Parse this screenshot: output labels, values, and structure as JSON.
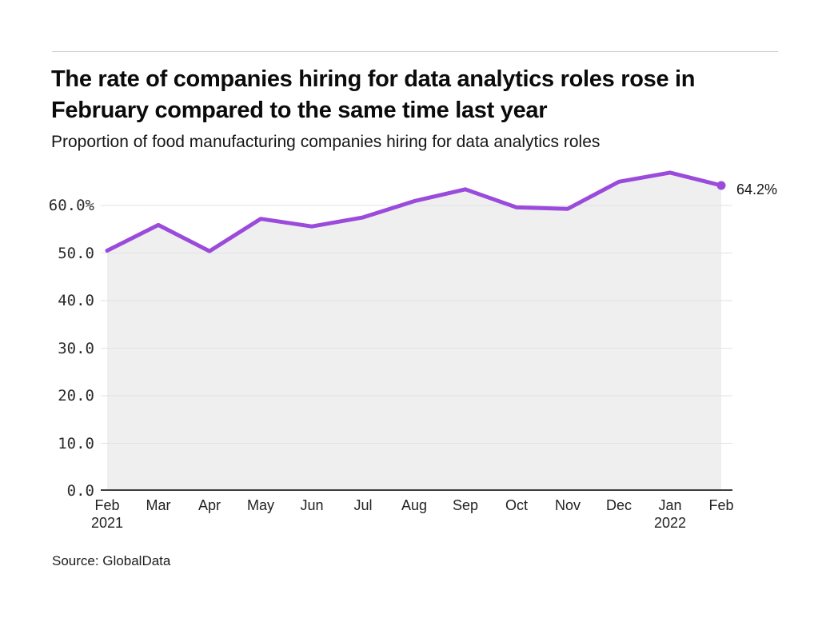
{
  "page": {
    "title": "The rate of companies hiring for data analytics roles rose in February compared to the same time last year",
    "subtitle": "Proportion of food manufacturing companies hiring for data analytics roles",
    "source": "Source: GlobalData"
  },
  "colors": {
    "line": "#9b4bdb",
    "area_fill": "#efefef",
    "gridline": "#e2e2e2",
    "axis": "#3d3d3d",
    "divider": "#cfcfcf"
  },
  "chart_data": {
    "type": "line",
    "title": "The rate of companies hiring for data analytics roles rose in February compared to the same time last year",
    "subtitle": "Proportion of food manufacturing companies hiring for data analytics roles",
    "x": [
      "Feb\n2021",
      "Mar",
      "Apr",
      "May",
      "Jun",
      "Jul",
      "Aug",
      "Sep",
      "Oct",
      "Nov",
      "Dec",
      "Jan\n2022",
      "Feb"
    ],
    "series": [
      {
        "name": "Proportion of companies hiring for data analytics roles (%)",
        "values": [
          50.5,
          55.9,
          50.4,
          57.2,
          55.6,
          57.5,
          60.9,
          63.4,
          59.6,
          59.3,
          65.0,
          66.9,
          64.2
        ]
      }
    ],
    "ylim": [
      0,
      70
    ],
    "yticks": [
      0,
      10,
      20,
      30,
      40,
      50,
      60
    ],
    "ytick_labels": [
      "0.0",
      "10.0",
      "20.0",
      "30.0",
      "40.0",
      "50.0",
      "60.0%"
    ],
    "end_label": "64.2%",
    "grid": "horizontal",
    "legend": "none",
    "area": true,
    "xlabel": "",
    "ylabel": ""
  }
}
